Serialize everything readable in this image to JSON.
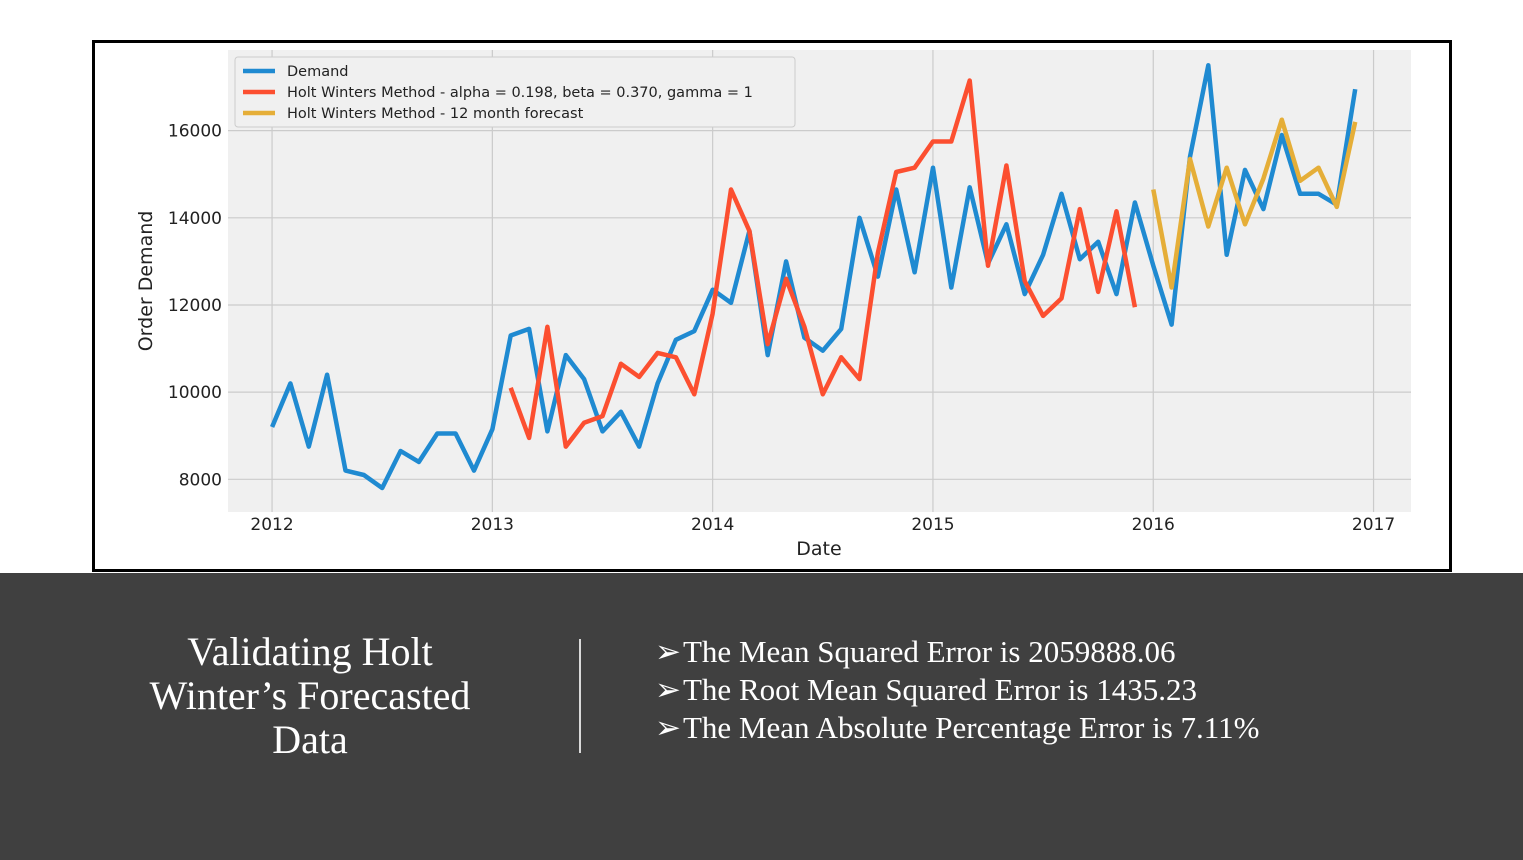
{
  "slide": {
    "title": "Validating Holt Winter’s Forecasted Data",
    "bullet_glyph": "➢",
    "metrics": [
      "The Mean Squared Error is 2059888.06",
      "The Root Mean Squared Error is 1435.23",
      "The Mean Absolute Percentage Error is 7.11%"
    ]
  },
  "chart_data": {
    "type": "line",
    "title": "",
    "xlabel": "Date",
    "ylabel": "Order Demand",
    "xlim": [
      2011.8,
      2017.17
    ],
    "ylim": [
      7250,
      17850
    ],
    "x_ticks": [
      2012,
      2013,
      2014,
      2015,
      2016,
      2017
    ],
    "x_tick_labels": [
      "2012",
      "2013",
      "2014",
      "2015",
      "2016",
      "2017"
    ],
    "y_ticks": [
      8000,
      10000,
      12000,
      14000,
      16000
    ],
    "y_tick_labels": [
      "8000",
      "10000",
      "12000",
      "14000",
      "16000"
    ],
    "grid": true,
    "legend_position": "upper-left",
    "series": [
      {
        "name": "Demand",
        "color": "#1f8ad1",
        "x_start": 2012,
        "step_months": 1,
        "values": [
          9200,
          10200,
          8750,
          10400,
          8200,
          8100,
          7800,
          8650,
          8400,
          9050,
          9050,
          8200,
          9150,
          11300,
          11450,
          9100,
          10850,
          10300,
          9100,
          9550,
          8750,
          10200,
          11200,
          11400,
          12350,
          12050,
          13700,
          10850,
          13000,
          11250,
          10950,
          11450,
          14000,
          12650,
          14650,
          12750,
          15150,
          12400,
          14700,
          12950,
          13850,
          12250,
          13150,
          14550,
          13050,
          13450,
          12250,
          14350,
          12900,
          11550,
          15400,
          17500,
          13150,
          15100,
          14200,
          15900,
          14550,
          14550,
          14300,
          16950
        ]
      },
      {
        "name": "Holt Winters Method - alpha = 0.198, beta = 0.370, gamma = 1",
        "color": "#fc4f30",
        "x_start": 2013.0833,
        "step_months": 1,
        "values": [
          10100,
          8950,
          11500,
          8750,
          9300,
          9450,
          10650,
          10350,
          10900,
          10800,
          9950,
          11800,
          14650,
          13700,
          11100,
          12600,
          11500,
          9950,
          10800,
          10300,
          13200,
          15050,
          15150,
          15750,
          15750,
          17150,
          12900,
          15200,
          12550,
          11750,
          12150,
          14200,
          12300,
          14150,
          11950
        ]
      },
      {
        "name": "Holt Winters Method - 12 month forecast",
        "color": "#e5ae38",
        "x_start": 2016,
        "step_months": 1,
        "values": [
          14650,
          12400,
          15350,
          13800,
          15150,
          13850,
          14900,
          16250,
          14850,
          15150,
          14250,
          16200
        ]
      }
    ]
  }
}
